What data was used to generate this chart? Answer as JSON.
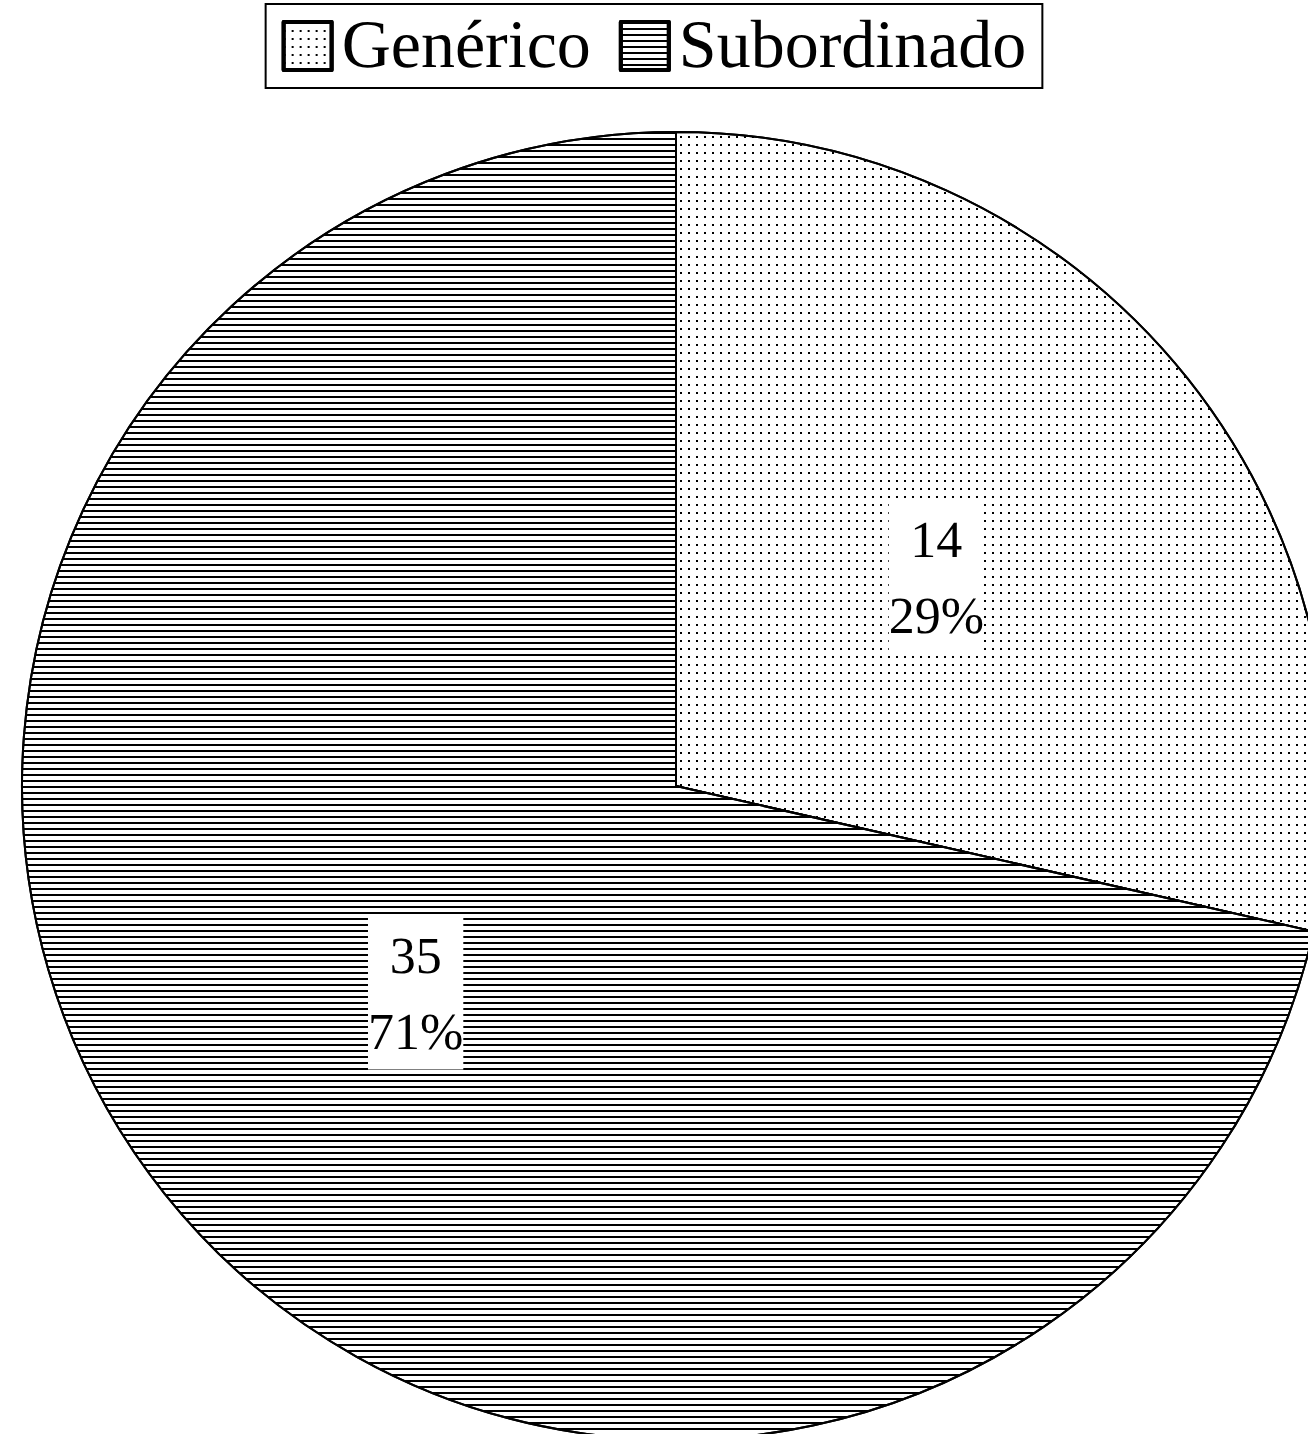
{
  "chart_data": {
    "type": "pie",
    "categories": [
      "Genérico",
      "Subordinado"
    ],
    "values": [
      14,
      35
    ],
    "colors": [
      "#ffffff",
      "#ffffff"
    ],
    "value_labels": [
      "14\n29%",
      "35\n71%"
    ],
    "legend": "top"
  }
}
